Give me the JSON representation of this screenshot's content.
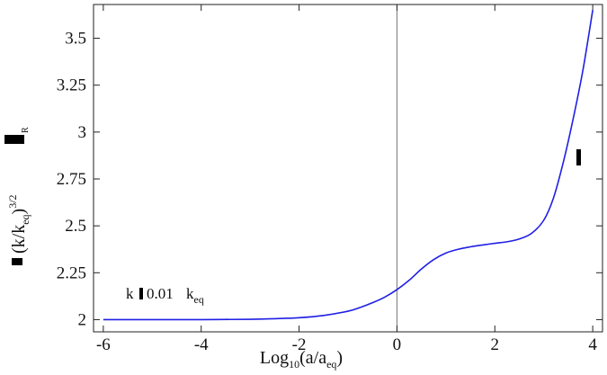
{
  "chart_data": {
    "type": "line",
    "title": "",
    "xlabel": {
      "prefix": "Log",
      "prefix_sub": "10",
      "arg_main": "(a/a",
      "arg_sub": "eq",
      "arg_close": ")"
    },
    "ylabel": {
      "main": "(k/k",
      "sub": "eq",
      "close": ")",
      "sup": "3/2",
      "subscript_R": "R"
    },
    "xlim": [
      -6.2,
      4.2
    ],
    "ylim": [
      1.935,
      3.68
    ],
    "xticks": [
      "-6",
      "-4",
      "-2",
      "0",
      "2",
      "4"
    ],
    "xtick_values": [
      -6,
      -4,
      -2,
      0,
      2,
      4
    ],
    "yticks": [
      "2",
      "2.25",
      "2.5",
      "2.75",
      "3",
      "3.25",
      "3.5"
    ],
    "ytick_values": [
      2,
      2.25,
      2.5,
      2.75,
      3,
      3.25,
      3.5
    ],
    "grid": false,
    "vertical_reference_line_x": 0,
    "annotation": {
      "k": "k",
      "value": "0.01",
      "keq_main": "k",
      "keq_sub": "eq"
    },
    "series": [
      {
        "color": "#1f1fe6",
        "x": [
          -6,
          -5,
          -4,
          -3,
          -2.5,
          -2,
          -1.5,
          -1,
          -0.75,
          -0.5,
          -0.25,
          0,
          0.25,
          0.5,
          0.75,
          1,
          1.25,
          1.5,
          1.75,
          2,
          2.25,
          2.5,
          2.75,
          3,
          3.2,
          3.4,
          3.6,
          3.8,
          4
        ],
        "y": [
          2.0,
          2.0,
          2.0,
          2.002,
          2.005,
          2.01,
          2.022,
          2.045,
          2.065,
          2.09,
          2.12,
          2.16,
          2.21,
          2.27,
          2.32,
          2.355,
          2.375,
          2.388,
          2.398,
          2.407,
          2.415,
          2.43,
          2.46,
          2.53,
          2.65,
          2.84,
          3.07,
          3.33,
          3.65
        ]
      }
    ]
  },
  "colors": {
    "axis": "#222222",
    "curve": "#1f1fe6",
    "reference_line": "#777777",
    "glyph": "#000000"
  }
}
